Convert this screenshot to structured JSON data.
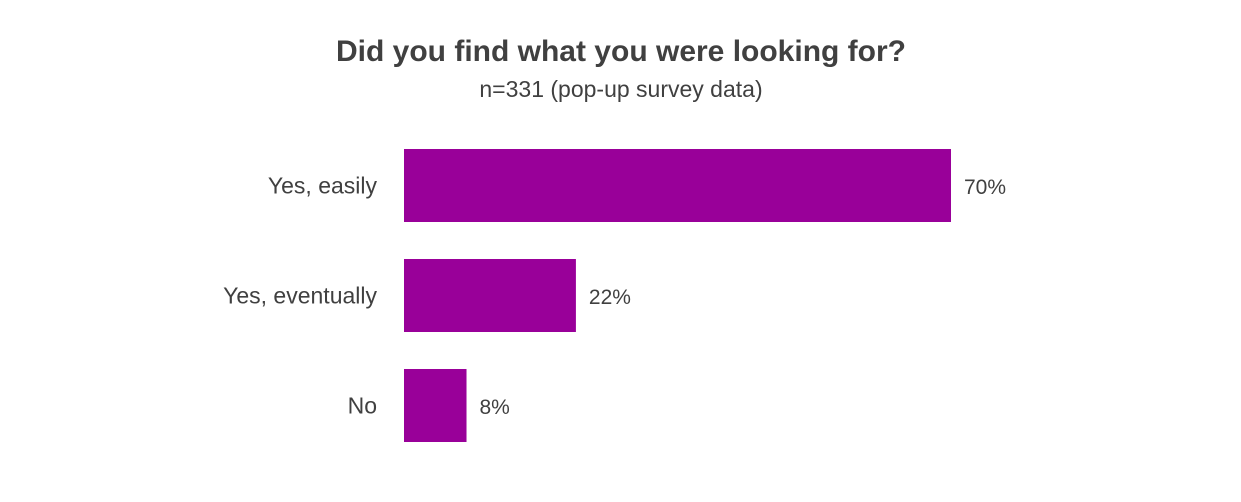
{
  "chart_data": {
    "type": "bar",
    "orientation": "horizontal",
    "title": "Did you find what you were looking for?",
    "subtitle": "n=331 (pop-up survey data)",
    "categories": [
      "Yes, easily",
      "Yes, eventually",
      "No"
    ],
    "values": [
      70,
      22,
      8
    ],
    "value_labels": [
      "70%",
      "22%",
      "8%"
    ],
    "xlim": [
      0,
      70
    ],
    "grid": false,
    "legend": "none",
    "bar_color": "#990099"
  }
}
